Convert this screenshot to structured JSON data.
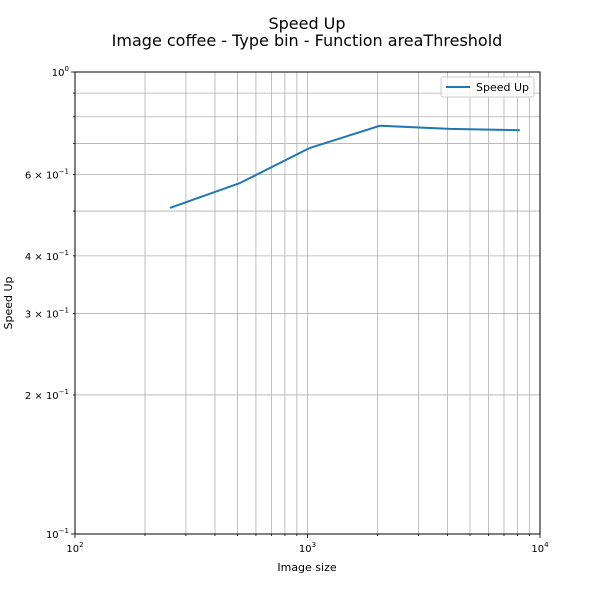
{
  "chart_data": {
    "type": "line",
    "title": "Speed Up",
    "subtitle": "Image coffee - Type bin - Function areaThreshold",
    "xlabel": "Image size",
    "ylabel": "Speed Up",
    "xscale": "log",
    "yscale": "log",
    "xlim": [
      100,
      10000
    ],
    "ylim": [
      0.1,
      1
    ],
    "grid": "both-major-minor",
    "legend_position": "top-right",
    "x_ticks": [
      {
        "value": 100,
        "base": "10",
        "exp": "2"
      },
      {
        "value": 1000,
        "base": "10",
        "exp": "3"
      },
      {
        "value": 10000,
        "base": "10",
        "exp": "4"
      }
    ],
    "y_ticks": [
      {
        "value": 0.1,
        "base": "10",
        "exp": "−1"
      },
      {
        "value": 1,
        "base": "10",
        "exp": "0"
      }
    ],
    "y_minor_tick_labels": [
      {
        "value": 0.2,
        "mant": "2",
        "times": "×",
        "base": "10",
        "exp": "−1"
      },
      {
        "value": 0.3,
        "mant": "3",
        "times": "×",
        "base": "10",
        "exp": "−1"
      },
      {
        "value": 0.4,
        "mant": "4",
        "times": "×",
        "base": "10",
        "exp": "−1"
      },
      {
        "value": 0.6,
        "mant": "6",
        "times": "×",
        "base": "10",
        "exp": "−1"
      }
    ],
    "series": [
      {
        "name": "Speed Up",
        "color": "#1f77b4",
        "x": [
          256,
          512,
          1024,
          2048,
          4096,
          8192
        ],
        "y": [
          0.508,
          0.575,
          0.685,
          0.765,
          0.753,
          0.748
        ]
      }
    ]
  }
}
